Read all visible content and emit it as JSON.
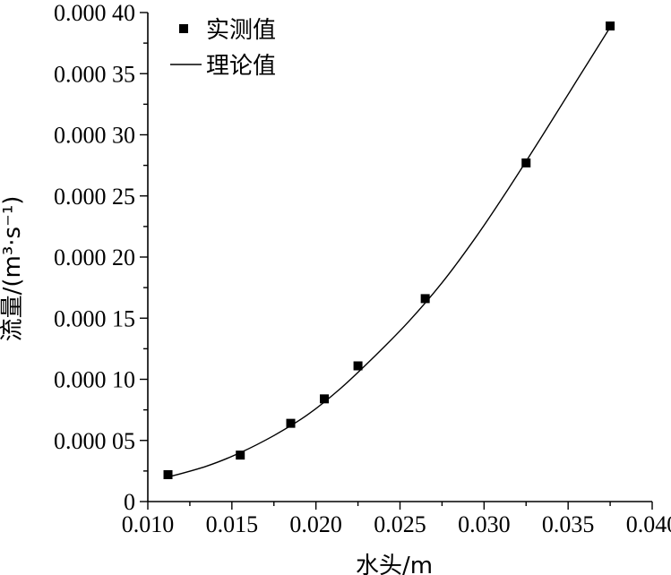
{
  "chart_data": {
    "type": "scatter",
    "xlabel": "水头/m",
    "ylabel": "流量/(m³·s⁻¹)",
    "xlim": [
      0.01,
      0.04
    ],
    "ylim": [
      0,
      0.0004
    ],
    "x_ticks": [
      {
        "value": 0.01,
        "label": "0.010"
      },
      {
        "value": 0.015,
        "label": "0.015"
      },
      {
        "value": 0.02,
        "label": "0.020"
      },
      {
        "value": 0.025,
        "label": "0.025"
      },
      {
        "value": 0.03,
        "label": "0.030"
      },
      {
        "value": 0.035,
        "label": "0.035"
      },
      {
        "value": 0.04,
        "label": "0.040"
      }
    ],
    "y_ticks": [
      {
        "value": 0,
        "label": "0"
      },
      {
        "value": 5e-05,
        "label": "0.000 05"
      },
      {
        "value": 0.0001,
        "label": "0.000 10"
      },
      {
        "value": 0.00015,
        "label": "0.000 15"
      },
      {
        "value": 0.0002,
        "label": "0.000 20"
      },
      {
        "value": 0.00025,
        "label": "0.000 25"
      },
      {
        "value": 0.0003,
        "label": "0.000 30"
      },
      {
        "value": 0.00035,
        "label": "0.000 35"
      },
      {
        "value": 0.0004,
        "label": "0.000 40"
      }
    ],
    "series": [
      {
        "name": "实测值",
        "kind": "points",
        "marker": "square",
        "color": "#000000",
        "x": [
          0.0112,
          0.0155,
          0.0185,
          0.0205,
          0.0225,
          0.0265,
          0.0325,
          0.0375
        ],
        "y": [
          2.2e-05,
          3.8e-05,
          6.4e-05,
          8.4e-05,
          0.000111,
          0.000166,
          0.000277,
          0.000389
        ]
      },
      {
        "name": "理论值",
        "kind": "line",
        "color": "#000000",
        "x": [
          0.0112,
          0.0135,
          0.0155,
          0.0175,
          0.0195,
          0.0215,
          0.0235,
          0.0255,
          0.0275,
          0.0295,
          0.0315,
          0.0335,
          0.0355,
          0.0375
        ],
        "y": [
          2e-05,
          2.9e-05,
          4e-05,
          5.4e-05,
          7.1e-05,
          9.3e-05,
          0.000119,
          0.000147,
          0.000179,
          0.000216,
          0.000257,
          0.0003,
          0.000344,
          0.000388
        ]
      }
    ],
    "legend": {
      "position": "top-left",
      "entries": [
        {
          "label": "实测值",
          "symbol": "square"
        },
        {
          "label": "理论值",
          "symbol": "line"
        }
      ]
    },
    "grid": false
  }
}
